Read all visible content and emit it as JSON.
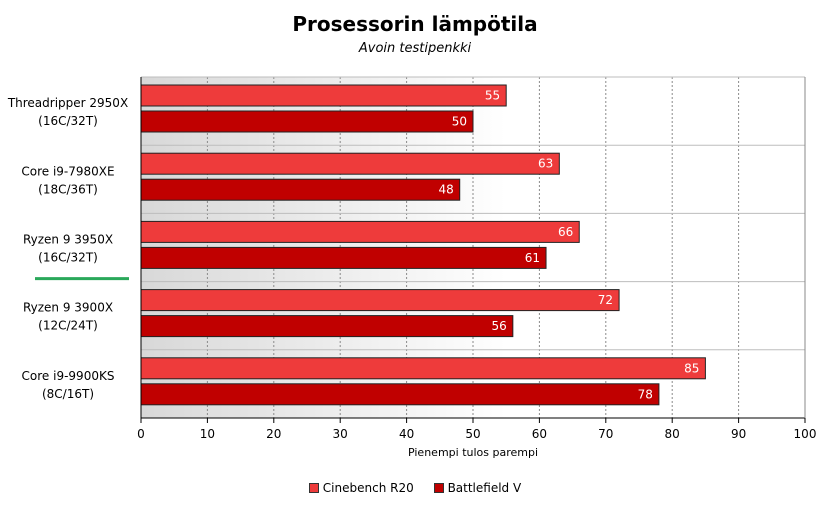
{
  "chart_data": {
    "type": "bar",
    "orientation": "horizontal",
    "title": "Prosessorin lämpötila",
    "subtitle": "Avoin testipenkki",
    "xlabel": "Pienempi tulos parempi",
    "ylabel": "",
    "xlim": [
      0,
      100
    ],
    "xticks": [
      0,
      10,
      20,
      30,
      40,
      50,
      60,
      70,
      80,
      90,
      100
    ],
    "grid": true,
    "legend_position": "bottom",
    "highlighted_category_index": 2,
    "categories": [
      [
        "Threadripper 2950X",
        "(16C/32T)"
      ],
      [
        "Core i9-7980XE",
        "(18C/36T)"
      ],
      [
        "Ryzen 9 3950X",
        "(16C/32T)"
      ],
      [
        "Ryzen 9 3900X",
        "(12C/24T)"
      ],
      [
        "Core i9-9900KS",
        "(8C/16T)"
      ]
    ],
    "series": [
      {
        "name": "Cinebench R20",
        "color": "#ee3b3b",
        "values": [
          55,
          63,
          66,
          72,
          85
        ]
      },
      {
        "name": "Battlefield V",
        "color": "#c00000",
        "values": [
          50,
          48,
          61,
          56,
          78
        ]
      }
    ],
    "highlight_color": "#2aa85a"
  }
}
